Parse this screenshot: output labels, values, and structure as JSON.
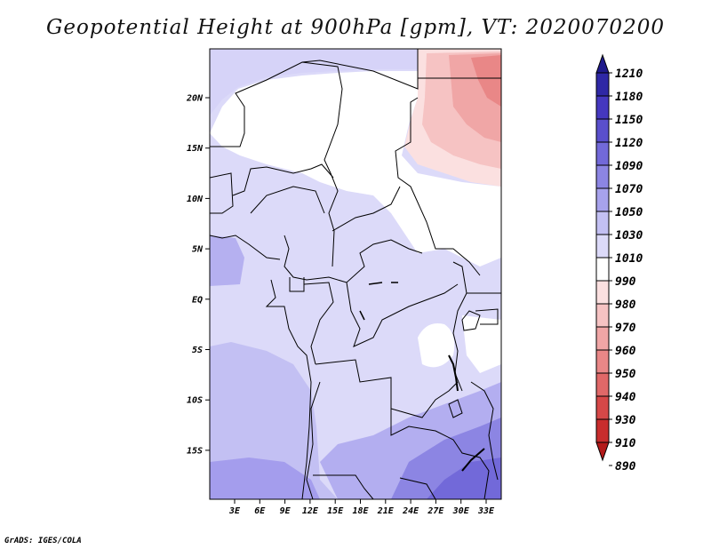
{
  "title": "Geopotential Height at 900hPa [gpm], VT: 2020070200",
  "credit": "GrADS: IGES/COLA",
  "map": {
    "lat_ticks": [
      "20N",
      "15N",
      "10N",
      "5N",
      "EQ",
      "5S",
      "10S",
      "15S"
    ],
    "lon_ticks": [
      "3E",
      "6E",
      "9E",
      "12E",
      "15E",
      "18E",
      "21E",
      "24E",
      "27E",
      "30E",
      "33E"
    ],
    "lat_range": [
      -20,
      25
    ],
    "lon_range": [
      0,
      35
    ]
  },
  "colorbar": {
    "labels": [
      "1210",
      "1180",
      "1150",
      "1120",
      "1090",
      "1070",
      "1050",
      "1030",
      "1010",
      "990",
      "980",
      "970",
      "960",
      "950",
      "940",
      "930",
      "910",
      "890"
    ],
    "colors": [
      "#1f1a8c",
      "#2f28a6",
      "#4538bf",
      "#5a4fcc",
      "#7269d9",
      "#8c85e3",
      "#a7a2ec",
      "#c3c0f3",
      "#dcdaf9",
      "#ffffff",
      "#fbe0e0",
      "#f6c3c3",
      "#f0a6a6",
      "#e98787",
      "#e06868",
      "#d64848",
      "#c82d2d",
      "#b31a1a"
    ]
  }
}
